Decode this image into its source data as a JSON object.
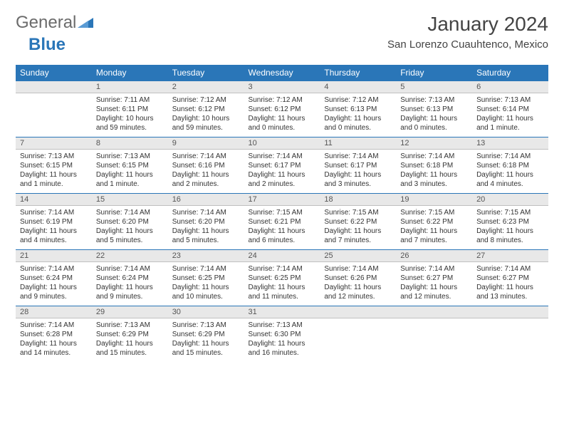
{
  "logo": {
    "text1": "General",
    "text2": "Blue"
  },
  "title": "January 2024",
  "location": "San Lorenzo Cuauhtenco, Mexico",
  "colors": {
    "header_bg": "#2a76b8",
    "header_text": "#ffffff",
    "daynum_bg": "#e8e8e8",
    "row_border": "#2a76b8",
    "body_text": "#333333",
    "logo_gray": "#6b6b6b",
    "logo_blue": "#2a76b8"
  },
  "day_headers": [
    "Sunday",
    "Monday",
    "Tuesday",
    "Wednesday",
    "Thursday",
    "Friday",
    "Saturday"
  ],
  "weeks": [
    [
      {
        "num": "",
        "sunrise": "",
        "sunset": "",
        "daylight": ""
      },
      {
        "num": "1",
        "sunrise": "Sunrise: 7:11 AM",
        "sunset": "Sunset: 6:11 PM",
        "daylight": "Daylight: 10 hours and 59 minutes."
      },
      {
        "num": "2",
        "sunrise": "Sunrise: 7:12 AM",
        "sunset": "Sunset: 6:12 PM",
        "daylight": "Daylight: 10 hours and 59 minutes."
      },
      {
        "num": "3",
        "sunrise": "Sunrise: 7:12 AM",
        "sunset": "Sunset: 6:12 PM",
        "daylight": "Daylight: 11 hours and 0 minutes."
      },
      {
        "num": "4",
        "sunrise": "Sunrise: 7:12 AM",
        "sunset": "Sunset: 6:13 PM",
        "daylight": "Daylight: 11 hours and 0 minutes."
      },
      {
        "num": "5",
        "sunrise": "Sunrise: 7:13 AM",
        "sunset": "Sunset: 6:13 PM",
        "daylight": "Daylight: 11 hours and 0 minutes."
      },
      {
        "num": "6",
        "sunrise": "Sunrise: 7:13 AM",
        "sunset": "Sunset: 6:14 PM",
        "daylight": "Daylight: 11 hours and 1 minute."
      }
    ],
    [
      {
        "num": "7",
        "sunrise": "Sunrise: 7:13 AM",
        "sunset": "Sunset: 6:15 PM",
        "daylight": "Daylight: 11 hours and 1 minute."
      },
      {
        "num": "8",
        "sunrise": "Sunrise: 7:13 AM",
        "sunset": "Sunset: 6:15 PM",
        "daylight": "Daylight: 11 hours and 1 minute."
      },
      {
        "num": "9",
        "sunrise": "Sunrise: 7:14 AM",
        "sunset": "Sunset: 6:16 PM",
        "daylight": "Daylight: 11 hours and 2 minutes."
      },
      {
        "num": "10",
        "sunrise": "Sunrise: 7:14 AM",
        "sunset": "Sunset: 6:17 PM",
        "daylight": "Daylight: 11 hours and 2 minutes."
      },
      {
        "num": "11",
        "sunrise": "Sunrise: 7:14 AM",
        "sunset": "Sunset: 6:17 PM",
        "daylight": "Daylight: 11 hours and 3 minutes."
      },
      {
        "num": "12",
        "sunrise": "Sunrise: 7:14 AM",
        "sunset": "Sunset: 6:18 PM",
        "daylight": "Daylight: 11 hours and 3 minutes."
      },
      {
        "num": "13",
        "sunrise": "Sunrise: 7:14 AM",
        "sunset": "Sunset: 6:18 PM",
        "daylight": "Daylight: 11 hours and 4 minutes."
      }
    ],
    [
      {
        "num": "14",
        "sunrise": "Sunrise: 7:14 AM",
        "sunset": "Sunset: 6:19 PM",
        "daylight": "Daylight: 11 hours and 4 minutes."
      },
      {
        "num": "15",
        "sunrise": "Sunrise: 7:14 AM",
        "sunset": "Sunset: 6:20 PM",
        "daylight": "Daylight: 11 hours and 5 minutes."
      },
      {
        "num": "16",
        "sunrise": "Sunrise: 7:14 AM",
        "sunset": "Sunset: 6:20 PM",
        "daylight": "Daylight: 11 hours and 5 minutes."
      },
      {
        "num": "17",
        "sunrise": "Sunrise: 7:15 AM",
        "sunset": "Sunset: 6:21 PM",
        "daylight": "Daylight: 11 hours and 6 minutes."
      },
      {
        "num": "18",
        "sunrise": "Sunrise: 7:15 AM",
        "sunset": "Sunset: 6:22 PM",
        "daylight": "Daylight: 11 hours and 7 minutes."
      },
      {
        "num": "19",
        "sunrise": "Sunrise: 7:15 AM",
        "sunset": "Sunset: 6:22 PM",
        "daylight": "Daylight: 11 hours and 7 minutes."
      },
      {
        "num": "20",
        "sunrise": "Sunrise: 7:15 AM",
        "sunset": "Sunset: 6:23 PM",
        "daylight": "Daylight: 11 hours and 8 minutes."
      }
    ],
    [
      {
        "num": "21",
        "sunrise": "Sunrise: 7:14 AM",
        "sunset": "Sunset: 6:24 PM",
        "daylight": "Daylight: 11 hours and 9 minutes."
      },
      {
        "num": "22",
        "sunrise": "Sunrise: 7:14 AM",
        "sunset": "Sunset: 6:24 PM",
        "daylight": "Daylight: 11 hours and 9 minutes."
      },
      {
        "num": "23",
        "sunrise": "Sunrise: 7:14 AM",
        "sunset": "Sunset: 6:25 PM",
        "daylight": "Daylight: 11 hours and 10 minutes."
      },
      {
        "num": "24",
        "sunrise": "Sunrise: 7:14 AM",
        "sunset": "Sunset: 6:25 PM",
        "daylight": "Daylight: 11 hours and 11 minutes."
      },
      {
        "num": "25",
        "sunrise": "Sunrise: 7:14 AM",
        "sunset": "Sunset: 6:26 PM",
        "daylight": "Daylight: 11 hours and 12 minutes."
      },
      {
        "num": "26",
        "sunrise": "Sunrise: 7:14 AM",
        "sunset": "Sunset: 6:27 PM",
        "daylight": "Daylight: 11 hours and 12 minutes."
      },
      {
        "num": "27",
        "sunrise": "Sunrise: 7:14 AM",
        "sunset": "Sunset: 6:27 PM",
        "daylight": "Daylight: 11 hours and 13 minutes."
      }
    ],
    [
      {
        "num": "28",
        "sunrise": "Sunrise: 7:14 AM",
        "sunset": "Sunset: 6:28 PM",
        "daylight": "Daylight: 11 hours and 14 minutes."
      },
      {
        "num": "29",
        "sunrise": "Sunrise: 7:13 AM",
        "sunset": "Sunset: 6:29 PM",
        "daylight": "Daylight: 11 hours and 15 minutes."
      },
      {
        "num": "30",
        "sunrise": "Sunrise: 7:13 AM",
        "sunset": "Sunset: 6:29 PM",
        "daylight": "Daylight: 11 hours and 15 minutes."
      },
      {
        "num": "31",
        "sunrise": "Sunrise: 7:13 AM",
        "sunset": "Sunset: 6:30 PM",
        "daylight": "Daylight: 11 hours and 16 minutes."
      },
      {
        "num": "",
        "sunrise": "",
        "sunset": "",
        "daylight": ""
      },
      {
        "num": "",
        "sunrise": "",
        "sunset": "",
        "daylight": ""
      },
      {
        "num": "",
        "sunrise": "",
        "sunset": "",
        "daylight": ""
      }
    ]
  ]
}
